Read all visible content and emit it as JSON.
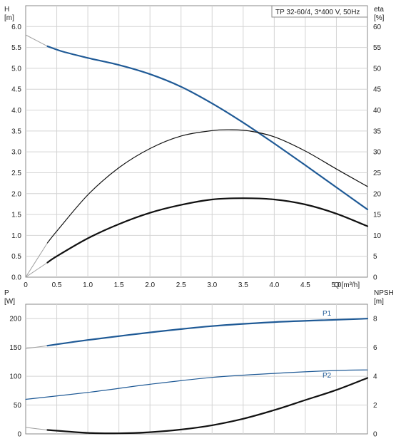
{
  "chart_data": [
    {
      "type": "line",
      "legend_text": "TP 32-60/4, 3*400 V, 50Hz",
      "legend_placement": "top-right",
      "grid": true,
      "x_axis": {
        "label": "Q [m³/h]",
        "ticks": [
          "0",
          "0.5",
          "1.0",
          "1.5",
          "2.0",
          "2.5",
          "3.0",
          "3.5",
          "4.0",
          "4.5",
          "5.0"
        ],
        "lim": [
          0,
          5.5
        ]
      },
      "y_left": {
        "label": "H",
        "unit": "[m]",
        "ticks": [
          "0.0",
          "0.5",
          "1.0",
          "1.5",
          "2.0",
          "2.5",
          "3.0",
          "3.5",
          "4.0",
          "4.5",
          "5.0",
          "5.5",
          "6.0"
        ],
        "lim": [
          0,
          6.5
        ]
      },
      "y_right": {
        "label": "eta",
        "unit": "[%]",
        "ticks": [
          "0",
          "5",
          "10",
          "15",
          "20",
          "25",
          "30",
          "35",
          "40",
          "45",
          "50",
          "55",
          "60"
        ],
        "lim": [
          0,
          65
        ]
      },
      "series": [
        {
          "axis": "left",
          "color": "#1f5a96",
          "width": 2.2,
          "x": [
            0.35,
            0.6,
            1.0,
            1.5,
            2.0,
            2.5,
            3.0,
            3.5,
            4.0,
            4.5,
            5.0,
            5.5
          ],
          "y": [
            5.53,
            5.4,
            5.25,
            5.08,
            4.86,
            4.56,
            4.16,
            3.7,
            3.2,
            2.68,
            2.15,
            1.62
          ],
          "lead_x": [
            0,
            0.35
          ],
          "lead_y": [
            5.8,
            5.53
          ]
        },
        {
          "axis": "right",
          "color": "#111111",
          "width": 1.2,
          "x": [
            0.35,
            0.5,
            1.0,
            1.5,
            2.0,
            2.5,
            3.0,
            3.3,
            3.6,
            4.0,
            4.5,
            5.0,
            5.5
          ],
          "y": [
            8.2,
            11.0,
            19.7,
            26.2,
            30.8,
            33.8,
            35.1,
            35.3,
            35.0,
            33.6,
            30.2,
            25.9,
            21.7
          ],
          "lead_x": [
            0,
            0.35
          ],
          "lead_y": [
            0,
            8.2
          ]
        },
        {
          "axis": "right",
          "color": "#111111",
          "width": 2.2,
          "x": [
            0.35,
            0.5,
            1.0,
            1.5,
            2.0,
            2.5,
            3.0,
            3.5,
            4.0,
            4.5,
            5.0,
            5.5
          ],
          "y": [
            3.5,
            5.0,
            9.3,
            12.7,
            15.4,
            17.3,
            18.6,
            18.9,
            18.6,
            17.4,
            15.2,
            12.2
          ],
          "lead_x": [
            0,
            0.35
          ],
          "lead_y": [
            0,
            3.5
          ]
        }
      ]
    },
    {
      "type": "line",
      "grid": true,
      "x_axis": {
        "lim": [
          0,
          5.5
        ]
      },
      "y_left": {
        "label": "P",
        "unit": "[W]",
        "ticks": [
          "0",
          "50",
          "100",
          "150",
          "200"
        ],
        "lim": [
          0,
          225
        ]
      },
      "y_right": {
        "label": "NPSH",
        "unit": "[m]",
        "ticks": [
          "0",
          "2",
          "4",
          "6",
          "8"
        ],
        "lim": [
          0,
          9
        ]
      },
      "series": [
        {
          "name": "P1",
          "axis": "left",
          "color": "#1f5a96",
          "width": 2.2,
          "x": [
            0.35,
            1.0,
            2.0,
            3.0,
            4.0,
            5.0,
            5.5
          ],
          "y": [
            153,
            163,
            176,
            187,
            194,
            198,
            200
          ],
          "lead_x": [
            0,
            0.35
          ],
          "lead_y": [
            148,
            153
          ]
        },
        {
          "name": "P2",
          "axis": "left",
          "color": "#1f5a96",
          "width": 1.2,
          "x": [
            0,
            1.0,
            2.0,
            3.0,
            4.0,
            5.0,
            5.5
          ],
          "y": [
            60,
            72,
            86,
            98,
            105,
            110,
            111
          ]
        },
        {
          "axis": "right",
          "color": "#111111",
          "width": 2.2,
          "x": [
            0.35,
            1.0,
            1.5,
            2.0,
            2.5,
            3.0,
            3.5,
            4.0,
            4.5,
            5.0,
            5.5
          ],
          "y": [
            0.27,
            0.07,
            0.04,
            0.12,
            0.3,
            0.6,
            1.05,
            1.65,
            2.35,
            3.05,
            3.88
          ],
          "lead_x": [
            0,
            0.35
          ],
          "lead_y": [
            0.45,
            0.27
          ]
        }
      ]
    }
  ]
}
